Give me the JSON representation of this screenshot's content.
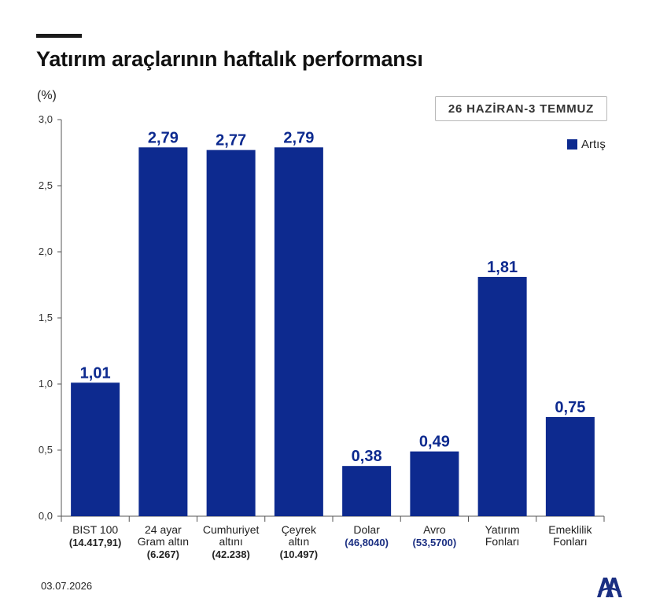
{
  "header": {
    "title": "Yatırım araçlarının haftalık performansı",
    "unit": "(%)",
    "date_range": "26 HAZİRAN-3 TEMMUZ"
  },
  "legend": {
    "label": "Artış"
  },
  "footer": {
    "date": "03.07.2026"
  },
  "colors": {
    "bar": "#0d2a8f",
    "label": "#0d2a8f",
    "sub_value": "#1b2f82",
    "axis": "#555555"
  },
  "chart_data": {
    "type": "bar",
    "ylabel": "(%)",
    "ylim": [
      0,
      3.0
    ],
    "yticks": [
      "0,0",
      "0,5",
      "1,0",
      "1,5",
      "2,0",
      "2,5",
      "3,0"
    ],
    "grid": false,
    "legend_position": "top-right",
    "categories": [
      {
        "lines": [
          "BIST 100"
        ],
        "sub": "(14.417,91)"
      },
      {
        "lines": [
          "24 ayar",
          "Gram altın"
        ],
        "sub": "(6.267)"
      },
      {
        "lines": [
          "Cumhuriyet",
          "altını"
        ],
        "sub": "(42.238)"
      },
      {
        "lines": [
          "Çeyrek",
          "altın"
        ],
        "sub": "(10.497)"
      },
      {
        "lines": [
          "Dolar"
        ],
        "sub": "(46,8040)"
      },
      {
        "lines": [
          "Avro"
        ],
        "sub": "(53,5700)"
      },
      {
        "lines": [
          "Yatırım",
          "Fonları"
        ],
        "sub": ""
      },
      {
        "lines": [
          "Emeklilik",
          "Fonları"
        ],
        "sub": ""
      }
    ],
    "series": [
      {
        "name": "Artış",
        "values": [
          1.01,
          2.79,
          2.77,
          2.79,
          0.38,
          0.49,
          1.81,
          0.75
        ],
        "labels": [
          "1,01",
          "2,79",
          "2,77",
          "2,79",
          "0,38",
          "0,49",
          "1,81",
          "0,75"
        ]
      }
    ]
  }
}
